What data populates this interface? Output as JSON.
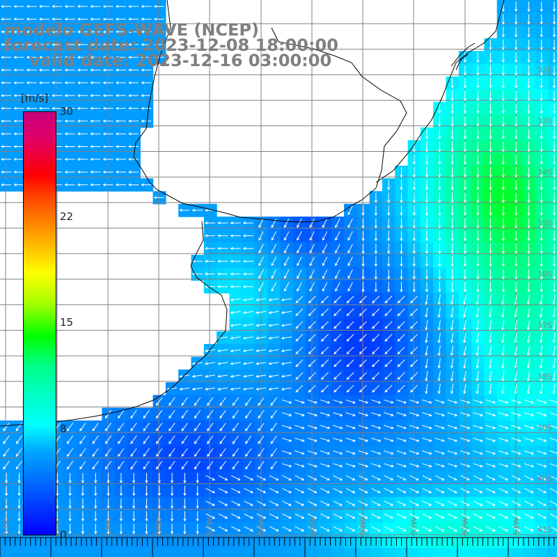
{
  "map": {
    "title": {
      "model": "modelo GEFS-WAVE (NCEP)",
      "forecast": "forecast date: 2023-12-08 18:00:00",
      "valid": "valid date: 2023-12-16 03:00:00"
    },
    "colorbar": {
      "unit": "[m/s]",
      "ticks": [
        "30",
        "22",
        "15",
        "8",
        "0"
      ],
      "colors": [
        "#0000ff",
        "#00aaff",
        "#00ffff",
        "#00ff00",
        "#ffff00",
        "#ff0000",
        "#c8007a"
      ]
    },
    "longitude_labels": [
      "61W",
      "60W",
      "59W",
      "58W",
      "57W",
      "56W",
      "55W",
      "54W",
      "53W",
      "52W",
      "51W"
    ],
    "latitude_labels": [
      "32S",
      "33S",
      "34S",
      "35S",
      "36S",
      "37S",
      "38S",
      "39S",
      "40S",
      "41S"
    ],
    "colors": {
      "land": "#ffffff",
      "coastline": "#000000",
      "grid": "#808080",
      "arrows": "#ffffff",
      "title": "#7f7f7f"
    }
  }
}
